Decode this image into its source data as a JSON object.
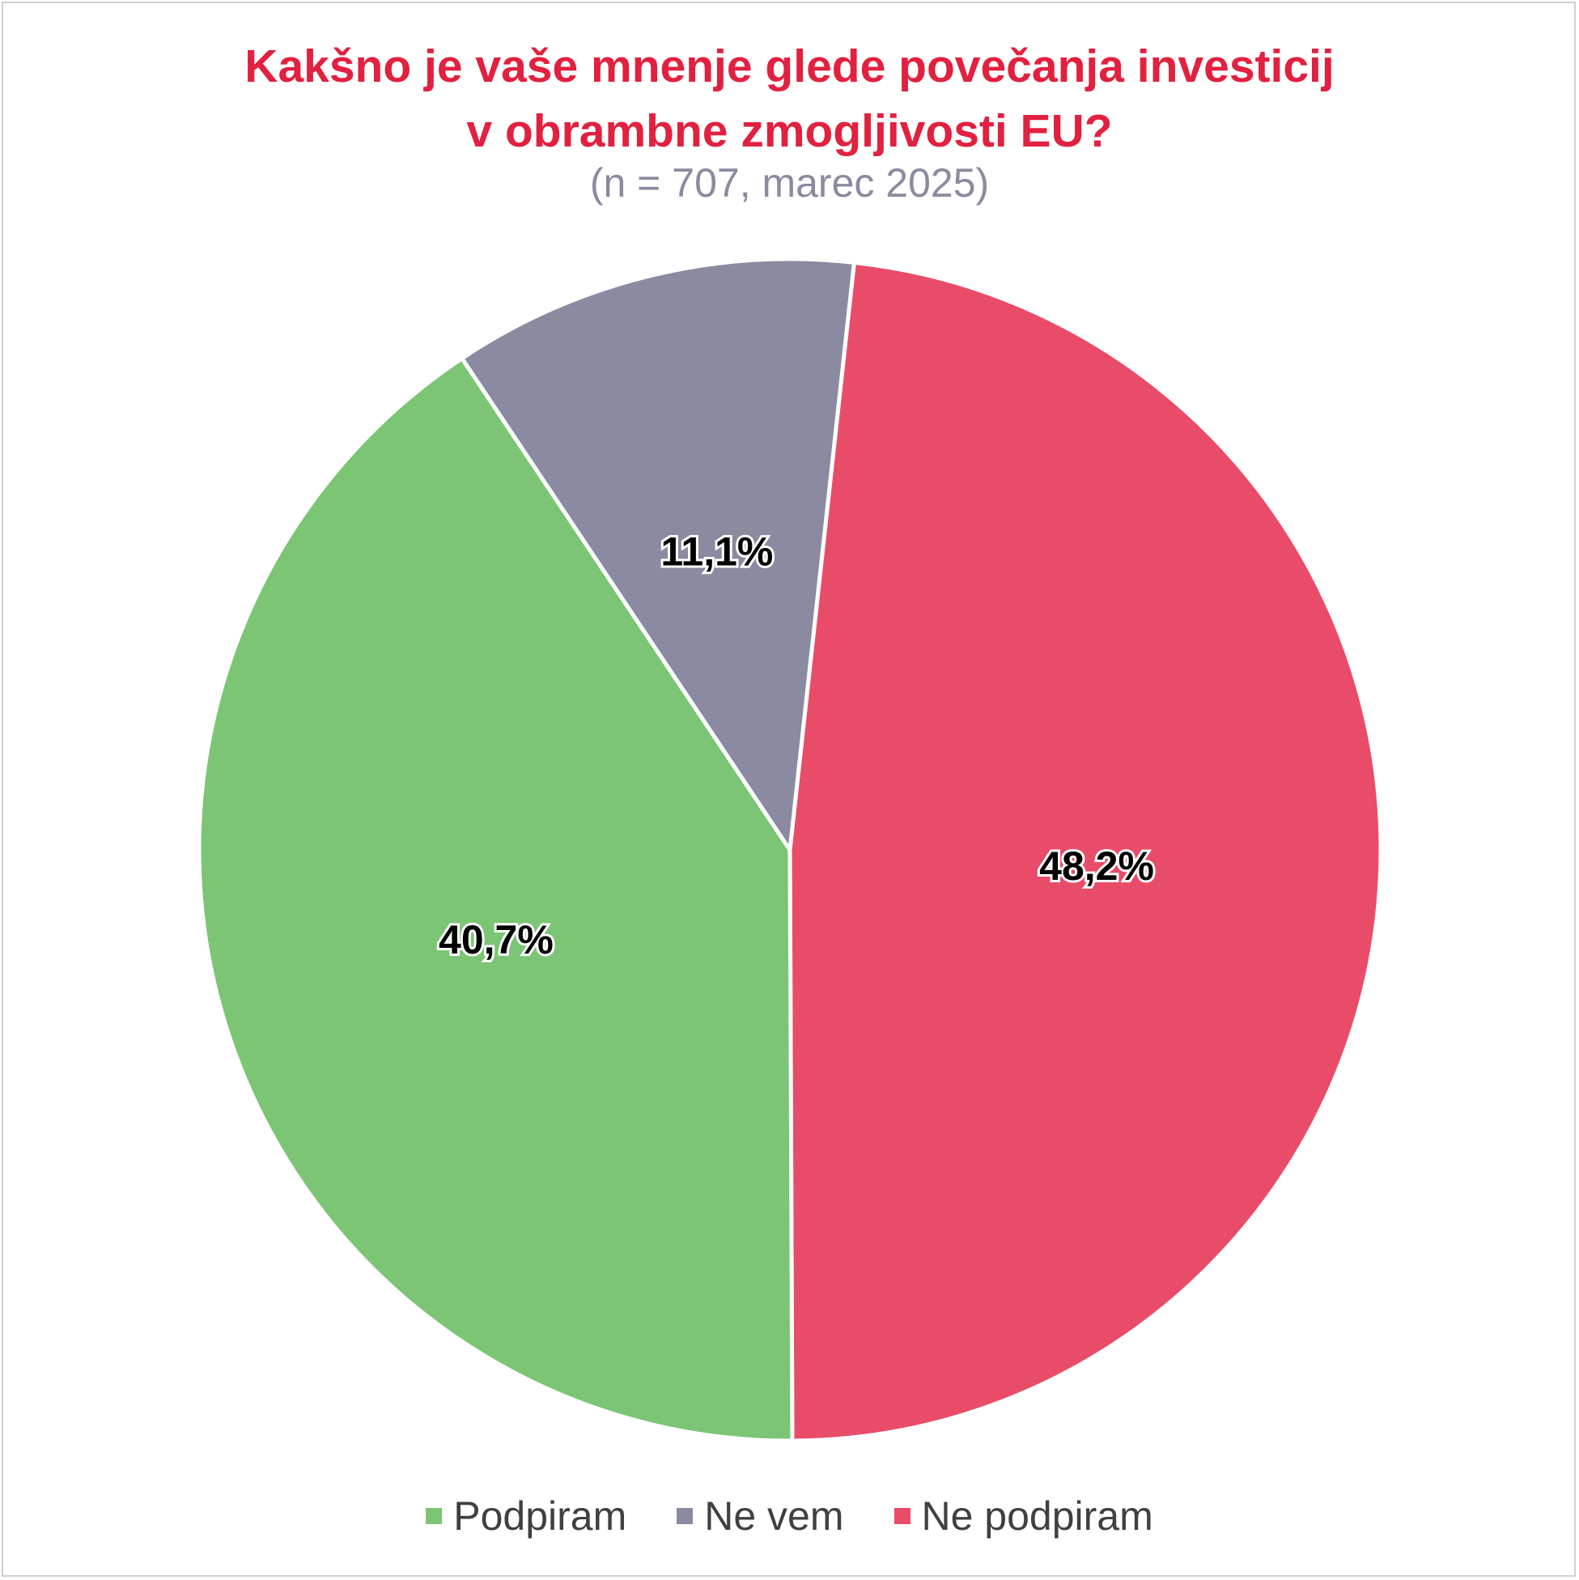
{
  "chart_data": {
    "type": "pie",
    "title_lines": [
      "Kakšno je vaše mnenje glede povečanja investicij",
      "v obrambne zmogljivosti EU?"
    ],
    "subtitle": "(n = 707, marec 2025)",
    "slices": [
      {
        "name": "Ne podpiram",
        "value": 48.2,
        "label": "48,2%",
        "color": "#e94c68"
      },
      {
        "name": "Podpiram",
        "value": 40.7,
        "label": "40,7%",
        "color": "#7bc574"
      },
      {
        "name": "Ne vem",
        "value": 11.1,
        "label": "11,1%",
        "color": "#8a8aa0"
      }
    ],
    "legend": [
      {
        "name": "Podpiram",
        "color": "#7bc574"
      },
      {
        "name": "Ne vem",
        "color": "#8a8aa0"
      },
      {
        "name": "Ne podpiram",
        "color": "#e94c68"
      }
    ],
    "legend_position": "bottom",
    "title_color": "#e2203f"
  }
}
